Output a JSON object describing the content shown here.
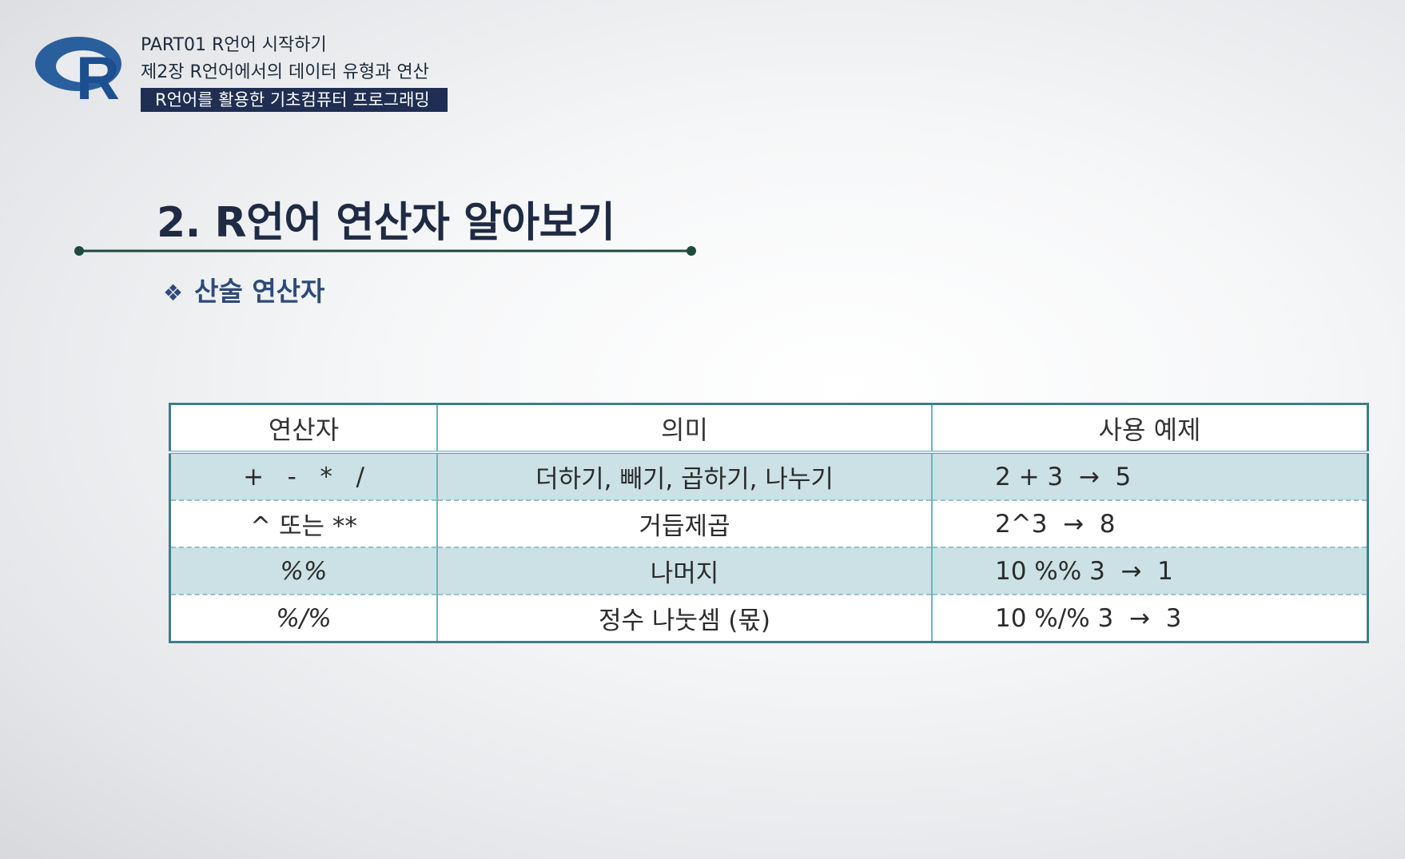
{
  "header": {
    "part_line": "PART01 R언어 시작하기",
    "chapter_line": "제2장 R언어에서의 데이터 유형과 연산",
    "course_badge": "R언어를 활용한 기초컴퓨터 프로그래밍",
    "logo_letter": "R",
    "logo_icon": "r-language-logo",
    "colors": {
      "badge_bg": "#1f2e52",
      "logo_ring": "#2a5f9e",
      "logo_letter": "#1c4f8f"
    }
  },
  "slide": {
    "title": "2. R언어 연산자 알아보기",
    "subtitle_bullet": "❖",
    "subtitle": "산술 연산자",
    "colors": {
      "title": "#1f2a44",
      "rule": "#1d4a3c",
      "subtitle": "#2d4a7a"
    }
  },
  "table": {
    "headers": [
      "연산자",
      "의미",
      "사용 예제"
    ],
    "rows": [
      {
        "operator": "+   -   *   /",
        "meaning": "더하기, 빼기, 곱하기, 나누기",
        "example": "2 + 3  →  5"
      },
      {
        "operator": "^ 또는 **",
        "meaning": "거듭제곱",
        "example": "2^3  →  8"
      },
      {
        "operator": "%%",
        "meaning": "나머지",
        "example": "10 %% 3  →  1"
      },
      {
        "operator": "%/%",
        "meaning": "정수 나눗셈 (몫)",
        "example": "10 %/% 3  →  3"
      }
    ],
    "colors": {
      "border": "#3d7f86",
      "shaded_row": "#cbe1e5"
    }
  }
}
